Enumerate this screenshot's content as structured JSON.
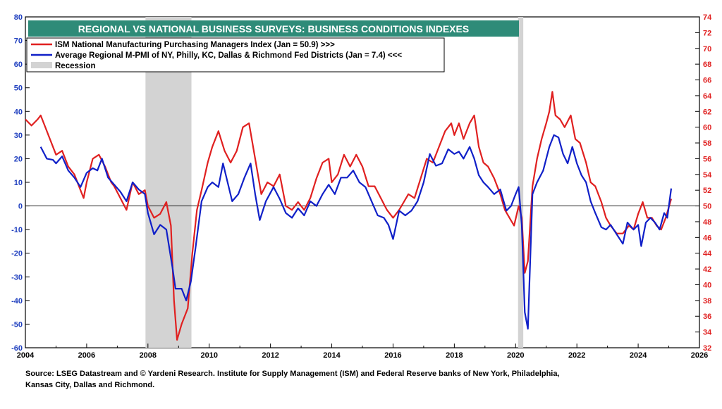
{
  "chart_data": {
    "type": "line",
    "title": "REGIONAL VS NATIONAL BUSINESS SURVEYS: BUSINESS CONDITIONS INDEXES",
    "xlim": [
      2004,
      2026
    ],
    "x_ticks": [
      "2004",
      "2006",
      "2008",
      "2010",
      "2012",
      "2014",
      "2016",
      "2018",
      "2020",
      "2022",
      "2024",
      "2026"
    ],
    "y_left": {
      "lim": [
        -60,
        80
      ],
      "ticks": [
        "-60",
        "-50",
        "-40",
        "-30",
        "-20",
        "-10",
        "0",
        "10",
        "20",
        "30",
        "40",
        "50",
        "60",
        "70",
        "80"
      ],
      "color": "#1f3fbf"
    },
    "y_right": {
      "lim": [
        32,
        74
      ],
      "ticks": [
        "32",
        "34",
        "36",
        "38",
        "40",
        "42",
        "44",
        "46",
        "48",
        "50",
        "52",
        "54",
        "56",
        "58",
        "60",
        "62",
        "64",
        "66",
        "68",
        "70",
        "72",
        "74"
      ],
      "color": "#e02020"
    },
    "legend": {
      "placement": "top-left",
      "entries": [
        {
          "label": "ISM National Manufacturing Purchasing Managers Index (Jan = 50.9) >>>",
          "color": "#e02020"
        },
        {
          "label": "Average Regional M-PMI of NY, Philly, KC, Dallas & Richmond Fed Districts (Jan = 7.4) <<<",
          "color": "#1020c8"
        },
        {
          "label": "Recession",
          "color": "#d3d3d3"
        }
      ]
    },
    "recessions": [
      [
        2007.92,
        2009.42
      ],
      [
        2020.08,
        2020.25
      ]
    ],
    "zero_line": true,
    "series": [
      {
        "name": "ISM National Manufacturing Purchasing Managers Index (Jan = 50.9) >>>",
        "axis": "right",
        "color": "#e02020",
        "points": [
          [
            2004.0,
            61.0
          ],
          [
            2004.2,
            60.2
          ],
          [
            2004.4,
            61.0
          ],
          [
            2004.5,
            61.5
          ],
          [
            2004.6,
            60.5
          ],
          [
            2004.8,
            58.5
          ],
          [
            2005.0,
            56.5
          ],
          [
            2005.2,
            57.0
          ],
          [
            2005.4,
            55.0
          ],
          [
            2005.6,
            54.0
          ],
          [
            2005.8,
            52.0
          ],
          [
            2005.9,
            51.0
          ],
          [
            2006.0,
            53.0
          ],
          [
            2006.2,
            56.0
          ],
          [
            2006.4,
            56.5
          ],
          [
            2006.6,
            55.0
          ],
          [
            2006.8,
            53.0
          ],
          [
            2006.9,
            52.5
          ],
          [
            2007.1,
            51.0
          ],
          [
            2007.3,
            49.5
          ],
          [
            2007.5,
            53.0
          ],
          [
            2007.7,
            51.5
          ],
          [
            2007.9,
            52.0
          ],
          [
            2008.0,
            50.0
          ],
          [
            2008.2,
            48.5
          ],
          [
            2008.4,
            49.0
          ],
          [
            2008.6,
            50.5
          ],
          [
            2008.75,
            47.5
          ],
          [
            2008.85,
            38.0
          ],
          [
            2008.95,
            33.0
          ],
          [
            2009.1,
            35.0
          ],
          [
            2009.3,
            37.0
          ],
          [
            2009.45,
            44.0
          ],
          [
            2009.6,
            49.5
          ],
          [
            2009.75,
            52.0
          ],
          [
            2009.95,
            55.5
          ],
          [
            2010.1,
            57.5
          ],
          [
            2010.3,
            59.5
          ],
          [
            2010.5,
            57.0
          ],
          [
            2010.7,
            55.5
          ],
          [
            2010.9,
            57.0
          ],
          [
            2011.1,
            60.0
          ],
          [
            2011.3,
            60.5
          ],
          [
            2011.5,
            56.0
          ],
          [
            2011.7,
            51.5
          ],
          [
            2011.9,
            53.0
          ],
          [
            2012.1,
            52.5
          ],
          [
            2012.3,
            54.0
          ],
          [
            2012.5,
            50.0
          ],
          [
            2012.7,
            49.5
          ],
          [
            2012.9,
            50.5
          ],
          [
            2013.1,
            49.5
          ],
          [
            2013.3,
            51.0
          ],
          [
            2013.5,
            53.5
          ],
          [
            2013.7,
            55.5
          ],
          [
            2013.9,
            56.0
          ],
          [
            2014.0,
            53.0
          ],
          [
            2014.2,
            54.0
          ],
          [
            2014.4,
            56.5
          ],
          [
            2014.6,
            55.0
          ],
          [
            2014.8,
            56.5
          ],
          [
            2015.0,
            55.0
          ],
          [
            2015.2,
            52.5
          ],
          [
            2015.4,
            52.5
          ],
          [
            2015.6,
            51.0
          ],
          [
            2015.8,
            49.5
          ],
          [
            2016.0,
            48.5
          ],
          [
            2016.2,
            49.5
          ],
          [
            2016.35,
            50.5
          ],
          [
            2016.5,
            51.5
          ],
          [
            2016.7,
            51.0
          ],
          [
            2016.9,
            53.5
          ],
          [
            2017.1,
            56.0
          ],
          [
            2017.3,
            55.5
          ],
          [
            2017.5,
            57.5
          ],
          [
            2017.7,
            59.5
          ],
          [
            2017.9,
            60.5
          ],
          [
            2018.0,
            59.0
          ],
          [
            2018.15,
            60.5
          ],
          [
            2018.3,
            58.5
          ],
          [
            2018.5,
            60.5
          ],
          [
            2018.65,
            61.5
          ],
          [
            2018.8,
            57.5
          ],
          [
            2018.95,
            55.5
          ],
          [
            2019.1,
            55.0
          ],
          [
            2019.3,
            53.5
          ],
          [
            2019.5,
            51.5
          ],
          [
            2019.65,
            49.5
          ],
          [
            2019.8,
            48.5
          ],
          [
            2019.95,
            47.5
          ],
          [
            2020.1,
            50.0
          ],
          [
            2020.2,
            48.5
          ],
          [
            2020.3,
            41.5
          ],
          [
            2020.4,
            43.0
          ],
          [
            2020.55,
            52.5
          ],
          [
            2020.7,
            56.0
          ],
          [
            2020.85,
            58.5
          ],
          [
            2021.0,
            60.5
          ],
          [
            2021.1,
            62.0
          ],
          [
            2021.2,
            64.5
          ],
          [
            2021.3,
            61.5
          ],
          [
            2021.45,
            61.0
          ],
          [
            2021.6,
            60.0
          ],
          [
            2021.8,
            61.5
          ],
          [
            2021.95,
            58.5
          ],
          [
            2022.1,
            58.0
          ],
          [
            2022.3,
            55.5
          ],
          [
            2022.45,
            53.0
          ],
          [
            2022.6,
            52.5
          ],
          [
            2022.8,
            50.5
          ],
          [
            2022.95,
            48.5
          ],
          [
            2023.1,
            47.5
          ],
          [
            2023.3,
            46.5
          ],
          [
            2023.5,
            46.5
          ],
          [
            2023.7,
            47.5
          ],
          [
            2023.85,
            47.0
          ],
          [
            2024.0,
            49.0
          ],
          [
            2024.15,
            50.5
          ],
          [
            2024.3,
            48.5
          ],
          [
            2024.45,
            48.5
          ],
          [
            2024.6,
            47.5
          ],
          [
            2024.75,
            47.0
          ],
          [
            2024.9,
            48.5
          ],
          [
            2025.08,
            50.9
          ]
        ]
      },
      {
        "name": "Average Regional M-PMI of NY, Philly, KC, Dallas & Richmond Fed Districts (Jan = 7.4) <<<",
        "axis": "left",
        "color": "#1020c8",
        "points": [
          [
            2004.5,
            25.0
          ],
          [
            2004.7,
            20.0
          ],
          [
            2004.9,
            19.5
          ],
          [
            2005.0,
            18.0
          ],
          [
            2005.2,
            21.0
          ],
          [
            2005.4,
            15.0
          ],
          [
            2005.6,
            12.0
          ],
          [
            2005.8,
            8.0
          ],
          [
            2006.0,
            14.0
          ],
          [
            2006.2,
            16.0
          ],
          [
            2006.35,
            15.0
          ],
          [
            2006.5,
            20.0
          ],
          [
            2006.7,
            12.0
          ],
          [
            2006.9,
            9.0
          ],
          [
            2007.1,
            6.0
          ],
          [
            2007.3,
            2.0
          ],
          [
            2007.5,
            10.0
          ],
          [
            2007.7,
            7.0
          ],
          [
            2007.9,
            5.0
          ],
          [
            2008.0,
            -3.0
          ],
          [
            2008.2,
            -12.0
          ],
          [
            2008.4,
            -8.0
          ],
          [
            2008.6,
            -10.0
          ],
          [
            2008.8,
            -26.0
          ],
          [
            2008.9,
            -35.0
          ],
          [
            2009.1,
            -35.0
          ],
          [
            2009.25,
            -40.0
          ],
          [
            2009.4,
            -32.0
          ],
          [
            2009.55,
            -18.0
          ],
          [
            2009.75,
            2.0
          ],
          [
            2009.95,
            8.0
          ],
          [
            2010.1,
            10.0
          ],
          [
            2010.3,
            8.0
          ],
          [
            2010.45,
            18.0
          ],
          [
            2010.6,
            10.0
          ],
          [
            2010.75,
            2.0
          ],
          [
            2010.95,
            5.0
          ],
          [
            2011.15,
            12.0
          ],
          [
            2011.35,
            18.0
          ],
          [
            2011.5,
            5.0
          ],
          [
            2011.65,
            -6.0
          ],
          [
            2011.85,
            2.0
          ],
          [
            2012.1,
            8.0
          ],
          [
            2012.3,
            3.0
          ],
          [
            2012.5,
            -3.0
          ],
          [
            2012.7,
            -5.0
          ],
          [
            2012.9,
            -1.0
          ],
          [
            2013.1,
            -4.0
          ],
          [
            2013.3,
            2.0
          ],
          [
            2013.5,
            0.0
          ],
          [
            2013.7,
            5.0
          ],
          [
            2013.9,
            9.0
          ],
          [
            2014.1,
            5.0
          ],
          [
            2014.3,
            12.0
          ],
          [
            2014.5,
            12.0
          ],
          [
            2014.7,
            15.0
          ],
          [
            2014.9,
            10.0
          ],
          [
            2015.1,
            8.0
          ],
          [
            2015.3,
            2.0
          ],
          [
            2015.5,
            -4.0
          ],
          [
            2015.7,
            -5.0
          ],
          [
            2015.85,
            -8.0
          ],
          [
            2016.0,
            -14.0
          ],
          [
            2016.2,
            -2.0
          ],
          [
            2016.4,
            -4.0
          ],
          [
            2016.6,
            -2.0
          ],
          [
            2016.8,
            2.0
          ],
          [
            2017.0,
            10.0
          ],
          [
            2017.2,
            22.0
          ],
          [
            2017.4,
            17.0
          ],
          [
            2017.6,
            18.0
          ],
          [
            2017.8,
            24.0
          ],
          [
            2018.0,
            22.0
          ],
          [
            2018.15,
            23.0
          ],
          [
            2018.3,
            20.0
          ],
          [
            2018.5,
            25.0
          ],
          [
            2018.65,
            20.0
          ],
          [
            2018.8,
            13.0
          ],
          [
            2018.95,
            10.0
          ],
          [
            2019.1,
            8.0
          ],
          [
            2019.3,
            5.0
          ],
          [
            2019.5,
            7.0
          ],
          [
            2019.7,
            -2.0
          ],
          [
            2019.85,
            0.0
          ],
          [
            2020.0,
            5.0
          ],
          [
            2020.1,
            8.0
          ],
          [
            2020.2,
            -8.0
          ],
          [
            2020.3,
            -45.0
          ],
          [
            2020.4,
            -52.0
          ],
          [
            2020.55,
            5.0
          ],
          [
            2020.7,
            10.0
          ],
          [
            2020.9,
            15.0
          ],
          [
            2021.1,
            25.0
          ],
          [
            2021.25,
            30.0
          ],
          [
            2021.4,
            29.0
          ],
          [
            2021.55,
            22.0
          ],
          [
            2021.7,
            18.0
          ],
          [
            2021.85,
            25.0
          ],
          [
            2022.0,
            18.0
          ],
          [
            2022.15,
            13.0
          ],
          [
            2022.3,
            10.0
          ],
          [
            2022.45,
            2.0
          ],
          [
            2022.6,
            -3.0
          ],
          [
            2022.8,
            -9.0
          ],
          [
            2022.95,
            -10.0
          ],
          [
            2023.1,
            -8.0
          ],
          [
            2023.3,
            -12.0
          ],
          [
            2023.5,
            -16.0
          ],
          [
            2023.65,
            -7.0
          ],
          [
            2023.85,
            -10.0
          ],
          [
            2024.0,
            -8.0
          ],
          [
            2024.1,
            -17.0
          ],
          [
            2024.25,
            -7.0
          ],
          [
            2024.4,
            -5.0
          ],
          [
            2024.55,
            -7.0
          ],
          [
            2024.7,
            -10.0
          ],
          [
            2024.85,
            -3.0
          ],
          [
            2024.95,
            -5.0
          ],
          [
            2025.08,
            7.4
          ]
        ]
      }
    ]
  },
  "source": {
    "line1": "Source: LSEG Datastream and © Yardeni Research. Institute for Supply Management (ISM) and Federal Reserve banks of New York, Philadelphia,",
    "line2": "Kansas City, Dallas and Richmond."
  }
}
